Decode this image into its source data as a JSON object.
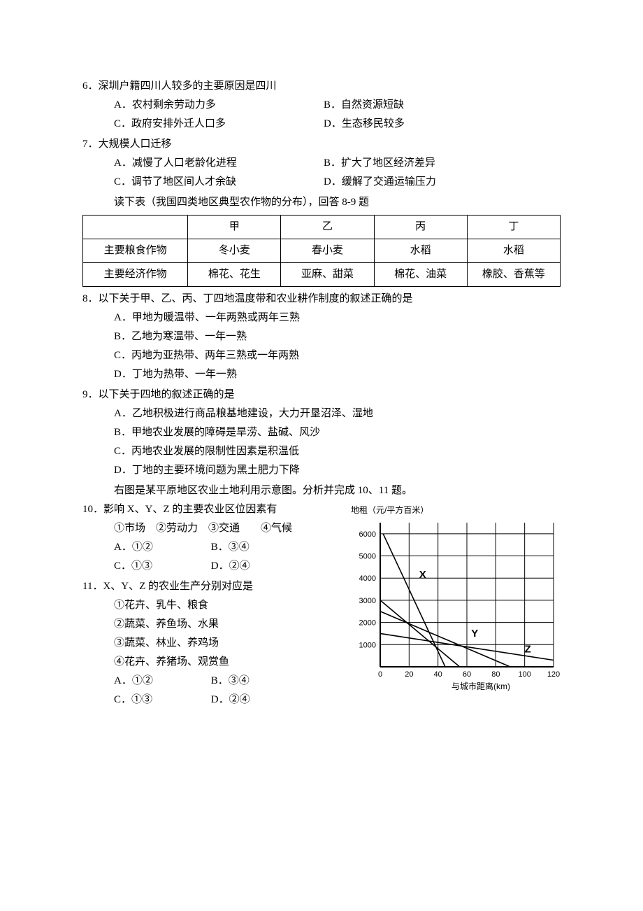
{
  "q6": {
    "stem": "6．深圳户籍四川人较多的主要原因是四川",
    "A": "A．农村剩余劳动力多",
    "B": "B．自然资源短缺",
    "C": "C．政府安排外迁人口多",
    "D": "D．生态移民较多"
  },
  "q7": {
    "stem": "7．大规模人口迁移",
    "A": "A．减慢了人口老龄化进程",
    "B": "B．扩大了地区经济差异",
    "C": "C．调节了地区间人才余缺",
    "D": "D．缓解了交通运输压力"
  },
  "table_intro": "读下表（我国四类地区典型农作物的分布），回答 8-9 题",
  "crops_table": {
    "headers": [
      "",
      "甲",
      "乙",
      "丙",
      "丁"
    ],
    "rows": [
      [
        "主要粮食作物",
        "冬小麦",
        "春小麦",
        "水稻",
        "水稻"
      ],
      [
        "主要经济作物",
        "棉花、花生",
        "亚麻、甜菜",
        "棉花、油菜",
        "橡胶、香蕉等"
      ]
    ],
    "col_widths": [
      "22%",
      "19.5%",
      "19.5%",
      "19.5%",
      "19.5%"
    ]
  },
  "q8": {
    "stem": "8．以下关于甲、乙、丙、丁四地温度带和农业耕作制度的叙述正确的是",
    "A": "A．甲地为暖温带、一年两熟或两年三熟",
    "B": "B．乙地为寒温带、一年一熟",
    "C": "C．丙地为亚热带、两年三熟或一年两熟",
    "D": "D．丁地为热带、一年一熟"
  },
  "q9": {
    "stem": "9．以下关于四地的叙述正确的是",
    "A": "A．乙地积极进行商品粮基地建设，大力开垦沼泽、湿地",
    "B": "B．甲地农业发展的障碍是旱涝、盐碱、风沙",
    "C": "C．丙地农业发展的限制性因素是积温低",
    "D": "D．丁地的主要环境问题为黑土肥力下降"
  },
  "chart_intro": "右图是某平原地区农业土地利用示意图。分析并完成 10、11 题。",
  "q10": {
    "stem": "10．影响 X、Y、Z 的主要农业区位因素有",
    "choices_line": "①市场　②劳动力　③交通　　④气候",
    "A": "A．①②",
    "B": "B．③④",
    "C": "C．①③",
    "D": "D．②④"
  },
  "q11": {
    "stem": "11．X、Y、Z 的农业生产分别对应是",
    "l1": "①花卉、乳牛、粮食",
    "l2": "②蔬菜、养鱼场、水果",
    "l3": "③蔬菜、林业、养鸡场",
    "l4": "④花卉、养猪场、观赏鱼",
    "A": "A．①②",
    "B": "B．③④",
    "C": "C．①③",
    "D": "D．②④"
  },
  "chart": {
    "title": "地租（元/平方百米）",
    "ylabel_vals": [
      1000,
      2000,
      3000,
      4000,
      5000,
      6000
    ],
    "xlabel": "与城市距离(km)",
    "x_ticks": [
      0,
      20,
      40,
      60,
      80,
      100,
      120
    ],
    "xlim": [
      0,
      120
    ],
    "ylim": [
      0,
      6500
    ],
    "grid_x_step": 20,
    "grid_y_step": 1000,
    "series": {
      "X": {
        "label": "X",
        "points": [
          [
            2,
            6000
          ],
          [
            45,
            0
          ]
        ]
      },
      "line2": {
        "points": [
          [
            0,
            3000
          ],
          [
            55,
            0
          ]
        ]
      },
      "Y": {
        "label": "Y",
        "points": [
          [
            0,
            2500
          ],
          [
            90,
            0
          ]
        ]
      },
      "Z": {
        "label": "Z",
        "points": [
          [
            0,
            1500
          ],
          [
            120,
            300
          ]
        ]
      }
    },
    "label_positions": {
      "X": [
        27,
        4000
      ],
      "Y": [
        63,
        1350
      ],
      "Z": [
        100,
        650
      ]
    },
    "colors": {
      "axis": "#000000",
      "grid": "#000000",
      "line": "#000000",
      "text": "#000000",
      "background": "#ffffff"
    },
    "line_width": 1.6,
    "font_size_axis": 11,
    "font_size_label": 15,
    "font_size_title": 12
  }
}
